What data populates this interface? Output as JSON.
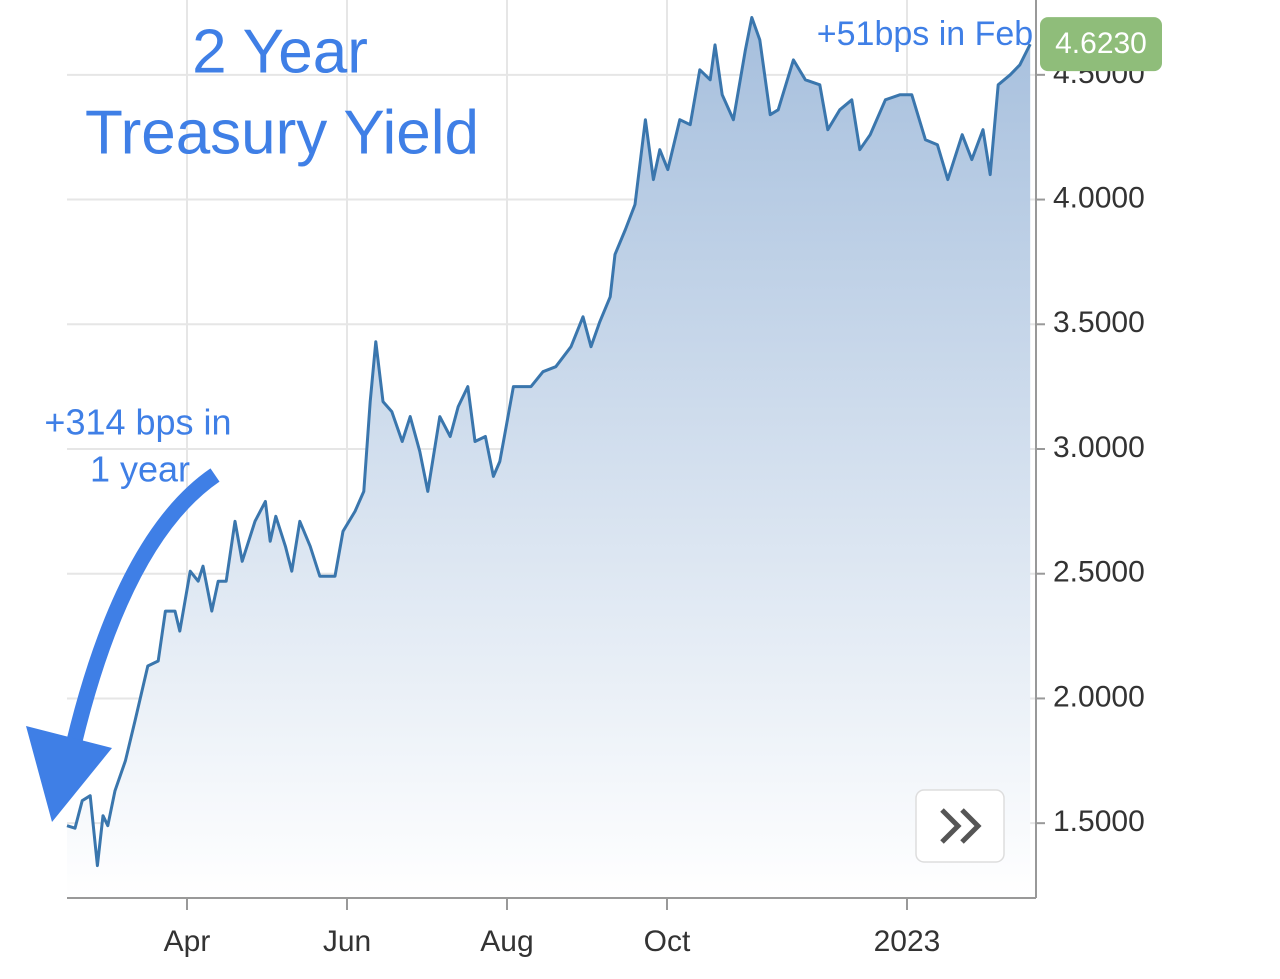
{
  "chart_data": {
    "type": "area",
    "title": [
      "2 Year",
      "Treasury Yield"
    ],
    "annotations": [
      {
        "lines": [
          "+314 bps in",
          "1 year"
        ]
      },
      {
        "lines": [
          "+51bps in Feb"
        ]
      }
    ],
    "x": [
      2.5,
      2.6,
      2.69,
      2.79,
      2.88,
      2.95,
      3.01,
      3.1,
      3.23,
      3.35,
      3.51,
      3.64,
      3.73,
      3.85,
      3.91,
      4.04,
      4.14,
      4.2,
      4.31,
      4.39,
      4.49,
      4.6,
      4.69,
      4.85,
      4.98,
      5.04,
      5.11,
      5.23,
      5.31,
      5.41,
      5.54,
      5.66,
      5.85,
      5.95,
      6.1,
      6.21,
      6.29,
      6.36,
      6.45,
      6.56,
      6.69,
      6.79,
      6.91,
      7.01,
      7.16,
      7.29,
      7.39,
      7.51,
      7.6,
      7.73,
      7.83,
      7.91,
      7.99,
      8.08,
      8.18,
      8.3,
      8.45,
      8.61,
      8.8,
      8.95,
      9.05,
      9.16,
      9.29,
      9.35,
      9.48,
      9.6,
      9.73,
      9.83,
      9.91,
      10.01,
      10.16,
      10.29,
      10.41,
      10.54,
      10.6,
      10.69,
      10.83,
      10.98,
      11.06,
      11.16,
      11.29,
      11.39,
      11.58,
      11.73,
      11.91,
      12.01,
      12.16,
      12.31,
      12.41,
      12.54,
      12.73,
      12.91,
      13.06,
      13.23,
      13.38,
      13.51,
      13.69,
      13.81,
      13.95,
      14.04,
      14.14,
      14.29,
      14.41,
      14.54
    ],
    "series": [
      {
        "name": "2 Year Treasury Yield",
        "color": "#3a76ad",
        "values": [
          1.49,
          1.48,
          1.59,
          1.61,
          1.33,
          1.53,
          1.49,
          1.63,
          1.75,
          1.91,
          2.13,
          2.15,
          2.35,
          2.35,
          2.27,
          2.51,
          2.47,
          2.53,
          2.35,
          2.47,
          2.47,
          2.71,
          2.55,
          2.71,
          2.79,
          2.63,
          2.73,
          2.61,
          2.51,
          2.71,
          2.61,
          2.49,
          2.49,
          2.67,
          2.75,
          2.83,
          3.19,
          3.43,
          3.19,
          3.15,
          3.03,
          3.13,
          2.99,
          2.83,
          3.13,
          3.05,
          3.17,
          3.25,
          3.03,
          3.05,
          2.89,
          2.95,
          3.09,
          3.25,
          3.25,
          3.25,
          3.31,
          3.33,
          3.41,
          3.53,
          3.41,
          3.51,
          3.61,
          3.78,
          3.88,
          3.98,
          4.32,
          4.08,
          4.2,
          4.12,
          4.32,
          4.3,
          4.52,
          4.48,
          4.62,
          4.42,
          4.32,
          4.6,
          4.73,
          4.64,
          4.34,
          4.36,
          4.56,
          4.48,
          4.46,
          4.28,
          4.36,
          4.4,
          4.2,
          4.26,
          4.4,
          4.42,
          4.42,
          4.24,
          4.22,
          4.08,
          4.26,
          4.16,
          4.28,
          4.1,
          4.46,
          4.5,
          4.54,
          4.623
        ],
        "value_labels": [
          null,
          null,
          null,
          null,
          null,
          null,
          null,
          null,
          null,
          null,
          null,
          null,
          null,
          null,
          null,
          null,
          null,
          null,
          null,
          null,
          null,
          null,
          null,
          null,
          null,
          null,
          null,
          null,
          null,
          null,
          null,
          null,
          null,
          null,
          null,
          null,
          null,
          null,
          null,
          null,
          null,
          null,
          null,
          null,
          null,
          null,
          null,
          null,
          null,
          null,
          null,
          null,
          null,
          null,
          null,
          null,
          null,
          null,
          null,
          null,
          null,
          null,
          null,
          null,
          null,
          null,
          null,
          null,
          null,
          null,
          null,
          null,
          null,
          null,
          null,
          null,
          null,
          null,
          null,
          null,
          null,
          null,
          null,
          null,
          null,
          null,
          null,
          null,
          null,
          null,
          null,
          null,
          null,
          null,
          null,
          null,
          null,
          null,
          null,
          null,
          null,
          null,
          null,
          "4.6230"
        ]
      }
    ],
    "xlim": [
      2.5,
      14.6
    ],
    "xticks": [
      {
        "value": 4,
        "label": "Apr"
      },
      {
        "value": 6,
        "label": "Jun"
      },
      {
        "value": 8,
        "label": "Aug"
      },
      {
        "value": 10,
        "label": "Oct"
      },
      {
        "value": 13,
        "label": "2023"
      }
    ],
    "ylim": [
      1.2,
      4.8
    ],
    "yticks": [
      {
        "value": 1.5,
        "label": "1.5000"
      },
      {
        "value": 2,
        "label": "2.0000"
      },
      {
        "value": 2.5,
        "label": "2.5000"
      },
      {
        "value": 3,
        "label": "3.0000"
      },
      {
        "value": 3.5,
        "label": "3.5000"
      },
      {
        "value": 4,
        "label": "4.0000"
      },
      {
        "value": 4.5,
        "label": "4.5000"
      }
    ],
    "grid": true
  }
}
